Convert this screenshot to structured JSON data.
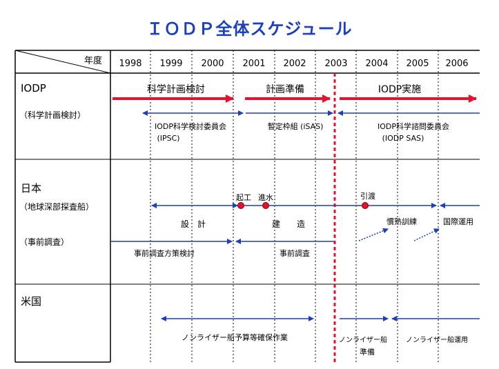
{
  "title": "ＩＯＤＰ全体スケジュール",
  "header_label": "年度",
  "years": [
    "1998",
    "1999",
    "2000",
    "2001",
    "2002",
    "2003",
    "2004",
    "2005",
    "2006"
  ],
  "sections": {
    "iodp": {
      "label": "IODP",
      "sub_label": "（科学計画検討）",
      "phases": [
        "科学計画検討",
        "計画準備",
        "IODP実施"
      ],
      "committees": [
        {
          "line1": "IODP科学検討委員会",
          "line2": "(IPSC)"
        },
        {
          "line1": "暫定枠組 (iSAS)",
          "line2": ""
        },
        {
          "line1": "IODP科学諮問委員会",
          "line2": "(IODP SAS)"
        }
      ]
    },
    "japan": {
      "label": "日本",
      "sub_label1": "（地球深部探査船）",
      "sub_label2": "（事前調査）",
      "milestones": [
        "起工",
        "進水",
        "引渡"
      ],
      "tasks": [
        "設　計",
        "建　　造",
        "慣熟訓練",
        "国際運用",
        "事前調査方策検討",
        "事前調査"
      ]
    },
    "us": {
      "label": "米国",
      "tasks": [
        "ノンライザー船予算等確保作業",
        "ノンライザー船",
        "準備",
        "ノンライザー船運用"
      ]
    }
  },
  "colors": {
    "title": "#1a3fc0",
    "red": "#e8102a",
    "blue": "#1a3fc0",
    "grid": "#000000"
  }
}
